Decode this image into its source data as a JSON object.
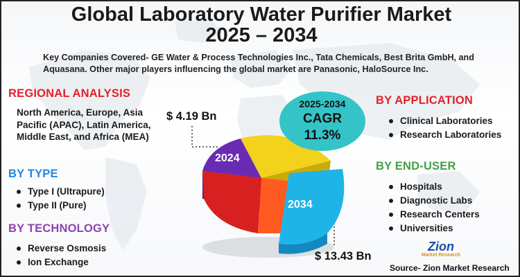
{
  "title": {
    "line1": "Global Laboratory Water Purifier Market",
    "line2": "2025 – 2034"
  },
  "companies_text": "Key Companies Covered- GE Water & Process Technologies Inc., Tata Chemicals, Best Brita GmbH, and Aquasana. Other major players influencing the global market are Panasonic, HaloSource Inc.",
  "regional": {
    "heading": "REGIONAL ANALYSIS",
    "text": "North America, Europe, Asia Pacific (APAC), Latin America, Middle East, and Africa (MEA)"
  },
  "by_type": {
    "heading": "BY TYPE",
    "items": [
      "Type I (Ultrapure)",
      "Type II (Pure)"
    ]
  },
  "by_technology": {
    "heading": "BY TECHNOLOGY",
    "items": [
      "Reverse Osmosis",
      "Ion Exchange"
    ]
  },
  "by_application": {
    "heading": "BY  APPLICATION",
    "items": [
      "Clinical Laboratories",
      "Research Laboratories"
    ]
  },
  "by_end_user": {
    "heading": "BY END-USER",
    "items": [
      "Hospitals",
      "Diagnostic Labs",
      "Research Centers",
      "Universities"
    ]
  },
  "cagr": {
    "years": "2025-2034",
    "label": "CAGR",
    "value": "11.3%"
  },
  "market": {
    "value_2024": "$ 4.19 Bn",
    "value_2034": "$ 13.43 Bn",
    "year_2024": "2024",
    "year_2034": "2034"
  },
  "logo": {
    "name": "Zion",
    "sub": "Market Research"
  },
  "source": "Source- Zion Market Research",
  "colors": {
    "red_heading": "#e5202a",
    "blue_heading": "#1e88e5",
    "purple_heading": "#8e44ad",
    "green_heading": "#43a047",
    "cagr_bubble": "#34c4c7",
    "pie_purple": "#6a2bb3",
    "pie_yellow": "#f2d21b",
    "pie_red": "#d92020",
    "pie_orange": "#ff5a1f",
    "pie_cyan": "#1fb4e8"
  }
}
